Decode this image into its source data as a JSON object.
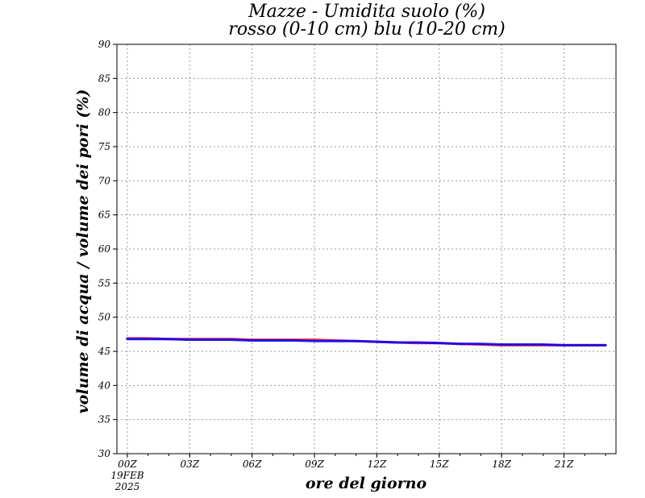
{
  "chart_data": {
    "type": "line",
    "title_line1": "Mazze - Umidita suolo (%)",
    "title_line2": "rosso (0-10 cm) blu (10-20 cm)",
    "xlabel": "ore del giorno",
    "ylabel": "volume di acqua / volume dei pori (%)",
    "x_tick_labels": [
      "00Z",
      "03Z",
      "06Z",
      "09Z",
      "12Z",
      "15Z",
      "18Z",
      "21Z"
    ],
    "x_tick_hours": [
      0,
      3,
      6,
      9,
      12,
      15,
      18,
      21
    ],
    "date_line1": "19FEB",
    "date_line2": "2025",
    "xlim": [
      -0.5,
      23.5
    ],
    "ylim": [
      30,
      90
    ],
    "y_ticks": [
      30,
      35,
      40,
      45,
      50,
      55,
      60,
      65,
      70,
      75,
      80,
      85,
      90
    ],
    "grid": true,
    "series": [
      {
        "color": "#ff0000",
        "hours": [
          0,
          1,
          2,
          3,
          4,
          5,
          6,
          7,
          8,
          9,
          10,
          11,
          12,
          13,
          14,
          15,
          16,
          17,
          18,
          19,
          20,
          21,
          22,
          23
        ],
        "values": [
          46.9,
          46.9,
          46.8,
          46.8,
          46.8,
          46.8,
          46.7,
          46.7,
          46.7,
          46.7,
          46.6,
          46.5,
          46.4,
          46.3,
          46.2,
          46.2,
          46.1,
          46.0,
          45.9,
          45.9,
          45.9,
          45.9,
          45.9,
          45.9
        ]
      },
      {
        "color": "#0000ff",
        "hours": [
          0,
          1,
          2,
          3,
          4,
          5,
          6,
          7,
          8,
          9,
          10,
          11,
          12,
          13,
          14,
          15,
          16,
          17,
          18,
          19,
          20,
          21,
          22,
          23
        ],
        "values": [
          46.8,
          46.8,
          46.8,
          46.7,
          46.7,
          46.7,
          46.6,
          46.6,
          46.6,
          46.5,
          46.5,
          46.5,
          46.4,
          46.3,
          46.3,
          46.2,
          46.1,
          46.1,
          46.0,
          46.0,
          46.0,
          45.9,
          45.9,
          45.9
        ]
      }
    ]
  }
}
